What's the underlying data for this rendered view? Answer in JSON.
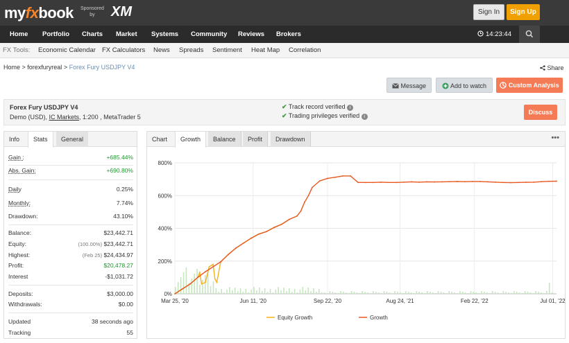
{
  "header": {
    "logo_my": "my",
    "logo_fx": "fx",
    "logo_book": "book",
    "sponsored": "Sponsored",
    "by": "by",
    "sponsor_brand": "XM",
    "signin": "Sign In",
    "signup": "Sign Up"
  },
  "nav": {
    "items": [
      "Home",
      "Portfolio",
      "Charts",
      "Market",
      "Systems",
      "Community",
      "Reviews",
      "Brokers"
    ],
    "clock": "14:23:44"
  },
  "tools": {
    "label": "FX Tools:",
    "items": [
      "Economic Calendar",
      "FX Calculators",
      "News",
      "Spreads",
      "Sentiment",
      "Heat Map",
      "Correlation"
    ]
  },
  "breadcrumb": {
    "home": "Home",
    "user": "forexfuryreal",
    "current": "Forex Fury USDJPY V4",
    "share": "Share"
  },
  "actions": {
    "message": "Message",
    "watch": "Add to watch",
    "analysis": "Custom Analysis"
  },
  "system": {
    "name": "Forex Fury USDJPY V4",
    "account": "Demo (USD),",
    "broker": "IC Markets",
    "details": ", 1:200 , MetaTrader 5",
    "verified1": "Track record verified",
    "verified2": "Trading privileges verified",
    "discuss": "Discuss"
  },
  "stats_tabs": [
    "Info",
    "Stats",
    "General"
  ],
  "stats": {
    "gain": {
      "k": "Gain :",
      "v": "+685.44%"
    },
    "abs_gain": {
      "k": "Abs. Gain:",
      "v": "+690.80%"
    },
    "daily": {
      "k": "Daily",
      "v": "0.25%"
    },
    "monthly": {
      "k": "Monthly:",
      "v": "7.74%"
    },
    "drawdown": {
      "k": "Drawdown:",
      "v": "43.10%"
    },
    "balance": {
      "k": "Balance:",
      "v": "$23,442.71"
    },
    "equity": {
      "k": "Equity:",
      "pre": "(100.00%)",
      "v": "$23,442.71"
    },
    "highest": {
      "k": "Highest:",
      "pre": "(Feb 25)",
      "v": "$24,434.97"
    },
    "profit": {
      "k": "Profit:",
      "v": "$20,478.27"
    },
    "interest": {
      "k": "Interest",
      "v": "-$1,031.72"
    },
    "deposits": {
      "k": "Deposits:",
      "v": "$3,000.00"
    },
    "withdrawals": {
      "k": "Withdrawals:",
      "v": "$0.00"
    },
    "updated": {
      "k": "Updated",
      "v": "38 seconds ago"
    },
    "tracking": {
      "k": "Tracking",
      "v": "55"
    }
  },
  "chart_tabs": [
    "Chart",
    "Growth",
    "Balance",
    "Profit",
    "Drawdown"
  ],
  "chart_menu": "•••",
  "colors": {
    "growth": "#e8571e",
    "equity": "#f5b01a",
    "bars": "#c6e6c0",
    "accent": "#f47b55",
    "positive": "#1a9a2a"
  },
  "chart_data": {
    "type": "line",
    "xlabels": [
      "Mar 25, '20",
      "Jun 11, '20",
      "Sep 22, '20",
      "Aug 24, '21",
      "Feb 22, '22",
      "Jul 01, '22"
    ],
    "ylabels": [
      "0%",
      "200%",
      "400%",
      "600%",
      "800%"
    ],
    "ylim": [
      0,
      800
    ],
    "legend": [
      "Equity Growth",
      "Growth"
    ],
    "legend_position": "bottom",
    "grid": true,
    "series": [
      {
        "name": "Growth",
        "x": [
          0,
          2,
          4,
          6,
          8,
          10,
          12,
          14,
          16,
          18,
          20,
          22,
          24,
          26,
          28,
          30,
          32,
          33,
          34,
          35,
          36,
          38,
          40,
          42,
          44,
          46,
          48,
          50,
          52,
          54,
          56,
          58,
          60,
          62,
          64,
          66,
          68,
          70,
          72,
          74,
          76,
          78,
          80,
          82,
          84,
          86,
          88,
          90,
          92,
          94,
          96,
          98,
          100
        ],
        "y": [
          0,
          30,
          60,
          100,
          135,
          165,
          195,
          240,
          280,
          310,
          340,
          365,
          380,
          405,
          425,
          455,
          475,
          505,
          560,
          600,
          650,
          690,
          705,
          712,
          720,
          720,
          680,
          680,
          680,
          682,
          680,
          680,
          682,
          684,
          682,
          684,
          683,
          684,
          685,
          686,
          685,
          686,
          686,
          684,
          682,
          680,
          679,
          680,
          681,
          682,
          685,
          687,
          688
        ]
      },
      {
        "name": "Equity Growth",
        "x": [
          0,
          2,
          4,
          6,
          6.5,
          7,
          8,
          9,
          10,
          10.5,
          11,
          12,
          14,
          16,
          18,
          20,
          22,
          24,
          26,
          28,
          30
        ],
        "y": [
          0,
          30,
          60,
          100,
          130,
          60,
          70,
          165,
          180,
          90,
          70,
          195,
          240,
          280,
          310,
          340,
          365,
          380,
          405,
          425,
          455
        ]
      }
    ]
  }
}
